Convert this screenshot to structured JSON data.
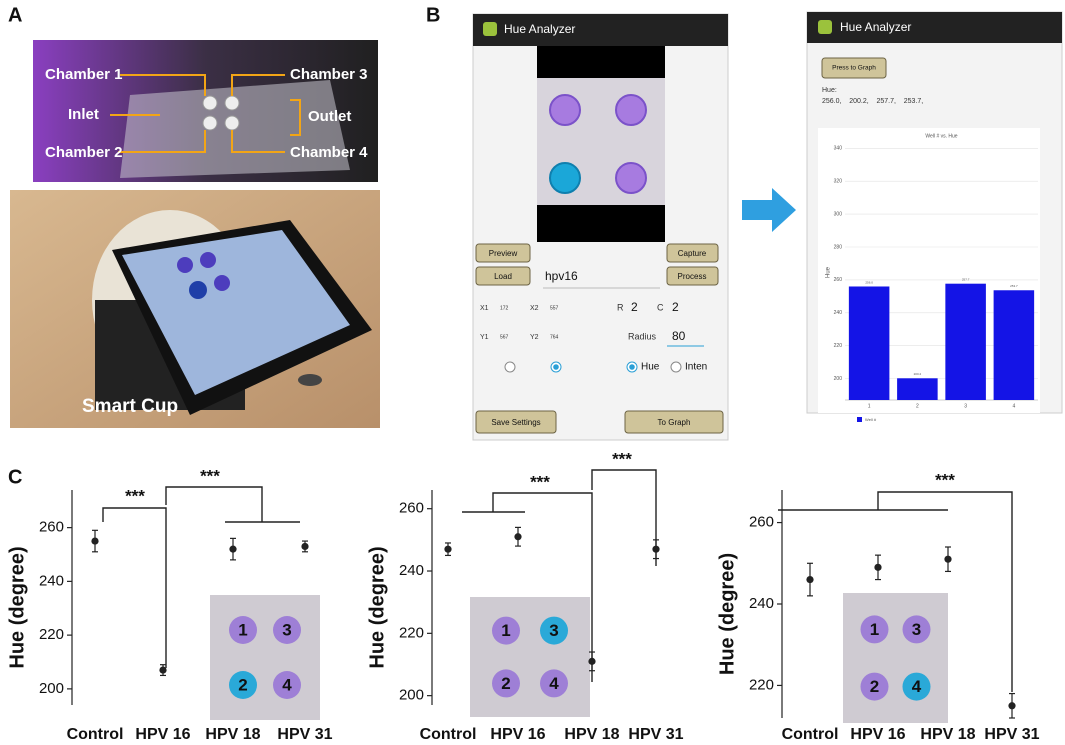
{
  "panel_labels": {
    "a": "A",
    "b": "B",
    "c": "C"
  },
  "device_photo": {
    "labels": [
      "Chamber 1",
      "Chamber 3",
      "Inlet",
      "Outlet",
      "Chamber 2",
      "Chamber 4"
    ]
  },
  "cup_photo": {
    "label": "Smart Cup"
  },
  "app_screen_1": {
    "title": "Hue Analyzer",
    "buttons": {
      "preview": "Preview",
      "capture": "Capture",
      "load": "Load",
      "process": "Process",
      "save": "Save Settings",
      "graph": "To Graph"
    },
    "file_name": "hpv16",
    "fields": [
      {
        "label": "X1",
        "value": "172"
      },
      {
        "label": "X2",
        "value": "557"
      },
      {
        "label": "R",
        "value": "2"
      },
      {
        "label": "C",
        "value": "2"
      },
      {
        "label": "Y1",
        "value": "567"
      },
      {
        "label": "Y2",
        "value": "764"
      },
      {
        "label": "Radius",
        "value": "80"
      }
    ],
    "radio": [
      "Hue",
      "Inten"
    ]
  },
  "app_screen_2": {
    "title": "Hue Analyzer",
    "button": "Press to Graph",
    "hue_heading": "Hue:",
    "hue_line": "256.0,    200.2,    257.7,    253.7,"
  },
  "chart_data": [
    {
      "type": "bar",
      "title": "Well # vs. Hue",
      "y_label": "Hue",
      "categories": [
        "1",
        "2",
        "3",
        "4"
      ],
      "series": [
        {
          "name": "Well #",
          "color": "#1414e6",
          "values": [
            256.0,
            200.2,
            257.7,
            253.7
          ],
          "value_labels": [
            "256.0",
            "200.2",
            "257.7",
            "253.7"
          ]
        }
      ],
      "ylim": [
        187,
        342
      ],
      "yticks": [
        200,
        220,
        240,
        260,
        280,
        300,
        320,
        340
      ],
      "grid": true
    },
    {
      "type": "errorbar",
      "y_label": "Hue (degree)",
      "categories": [
        "Control",
        "HPV 16",
        "HPV 18",
        "HPV 31"
      ],
      "values": [
        255,
        207,
        252,
        253
      ],
      "errors": [
        4,
        2,
        4,
        2
      ],
      "color": "#222222",
      "ylim": [
        194,
        274
      ],
      "yticks": [
        200,
        220,
        240,
        260
      ],
      "annotations": [
        "***",
        "***"
      ],
      "inset_labels": [
        "1",
        "3",
        "2",
        "4"
      ]
    },
    {
      "type": "errorbar",
      "y_label": "Hue (degree)",
      "categories": [
        "Control",
        "HPV 16",
        "HPV 18",
        "HPV 31"
      ],
      "values": [
        247,
        251,
        211,
        247
      ],
      "errors": [
        2,
        3,
        3,
        3
      ],
      "color": "#222222",
      "ylim": [
        197,
        266
      ],
      "yticks": [
        200,
        220,
        240,
        260
      ],
      "annotations": [
        "***",
        "***"
      ],
      "inset_labels": [
        "1",
        "3",
        "2",
        "4"
      ]
    },
    {
      "type": "errorbar",
      "y_label": "Hue (degree)",
      "categories": [
        "Control",
        "HPV 16",
        "HPV 18",
        "HPV 31"
      ],
      "values": [
        246,
        249,
        251,
        215
      ],
      "errors": [
        4,
        3,
        3,
        3
      ],
      "color": "#222222",
      "ylim": [
        212,
        268
      ],
      "yticks": [
        220,
        240,
        260
      ],
      "annotations": [
        "***"
      ],
      "inset_labels": [
        "1",
        "3",
        "2",
        "4"
      ]
    }
  ]
}
